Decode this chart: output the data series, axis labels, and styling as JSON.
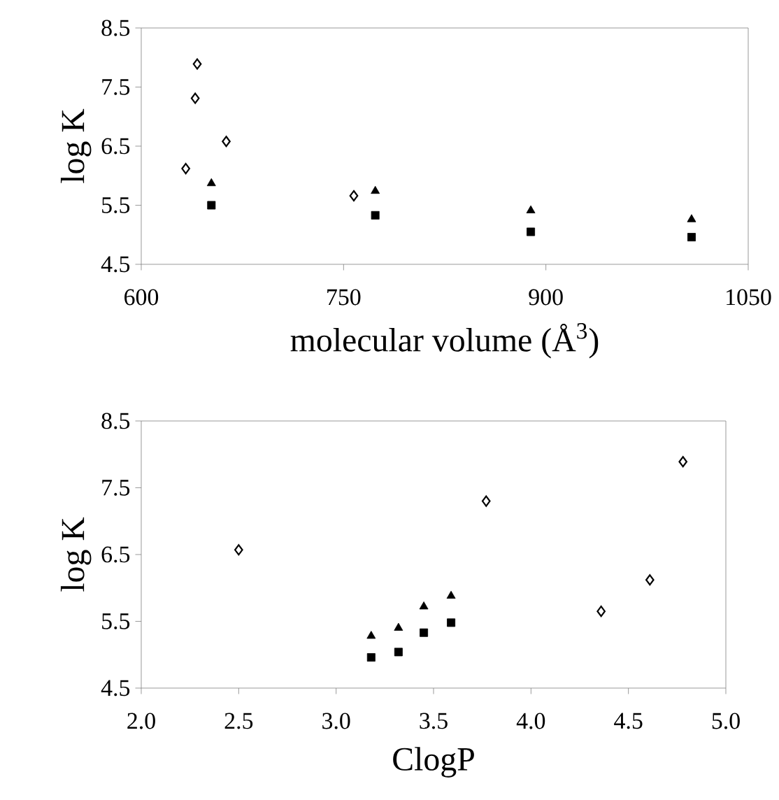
{
  "chart_data": [
    {
      "type": "scatter",
      "xlabel": "molecular volume (Å$^{3}$)",
      "ylabel": "log K",
      "xlim": [
        600,
        1050
      ],
      "xticks": [
        600,
        750,
        900,
        1050
      ],
      "ylim": [
        4.5,
        8.5
      ],
      "yticks": [
        4.5,
        5.5,
        6.5,
        7.5,
        8.5
      ],
      "grid": false,
      "series": [
        {
          "color": "#000000",
          "marker": "diamond",
          "x": [
            641.5,
            640,
            663,
            633,
            757.6
          ],
          "values": [
            7.89,
            7.31,
            6.58,
            6.12,
            5.66
          ]
        },
        {
          "color": "#000000",
          "marker": "triangle",
          "x": [
            652,
            773.5,
            888.8,
            1008
          ],
          "values": [
            5.87,
            5.74,
            5.41,
            5.26
          ]
        },
        {
          "color": "#000000",
          "marker": "square",
          "x": [
            652,
            773.5,
            888.8,
            1008
          ],
          "values": [
            5.5,
            5.33,
            5.05,
            4.96
          ]
        }
      ]
    },
    {
      "type": "scatter",
      "xlabel": "ClogP",
      "ylabel": "log K",
      "xlim": [
        2.0,
        5.0
      ],
      "xticks": [
        {
          "value": 2.0,
          "label": "2.0"
        },
        2.5,
        {
          "value": 3.0,
          "label": "3.0"
        },
        3.5,
        {
          "value": 4.0,
          "label": "4.0"
        },
        4.5,
        {
          "value": 5.0,
          "label": "5.0"
        }
      ],
      "ylim": [
        4.5,
        8.5
      ],
      "yticks": [
        4.5,
        5.5,
        6.5,
        7.5,
        8.5
      ],
      "grid": false,
      "series": [
        {
          "color": "#000000",
          "marker": "diamond",
          "x": [
            2.5,
            3.77,
            4.36,
            4.61,
            4.78
          ],
          "values": [
            6.57,
            7.3,
            5.65,
            6.12,
            7.89
          ]
        },
        {
          "color": "#000000",
          "marker": "triangle",
          "x": [
            3.18,
            3.32,
            3.45,
            3.59
          ],
          "values": [
            5.28,
            5.4,
            5.72,
            5.88
          ]
        },
        {
          "color": "#000000",
          "marker": "square",
          "x": [
            3.18,
            3.32,
            3.45,
            3.59
          ],
          "values": [
            4.96,
            5.04,
            5.33,
            5.48
          ]
        }
      ]
    }
  ]
}
